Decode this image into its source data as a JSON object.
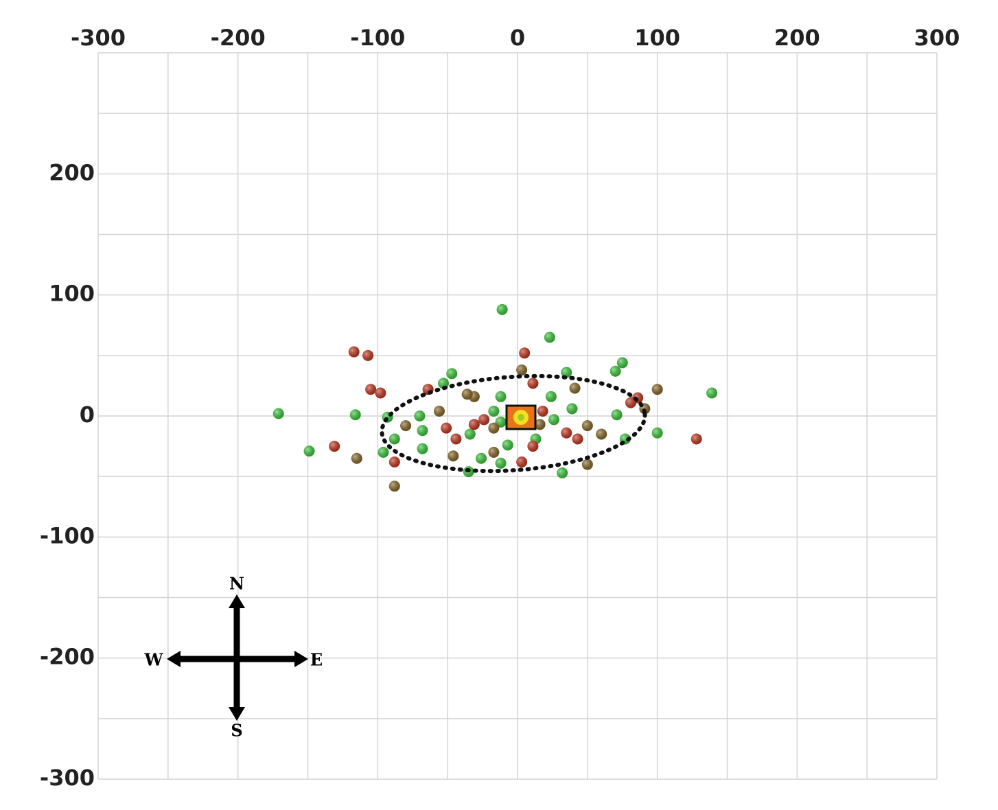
{
  "chart_data": {
    "type": "scatter",
    "xlim": [
      -300,
      300
    ],
    "ylim": [
      -300,
      300
    ],
    "xticks": [
      -300,
      -200,
      -100,
      0,
      100,
      200,
      300
    ],
    "yticks": [
      200,
      100,
      0,
      -100,
      -200,
      -300
    ],
    "xgrid": [
      -300,
      -250,
      -200,
      -150,
      -100,
      -50,
      0,
      50,
      100,
      150,
      200,
      250,
      300
    ],
    "ygrid": [
      -300,
      -250,
      -200,
      -150,
      -100,
      -50,
      0,
      50,
      100,
      150,
      200,
      250,
      300
    ],
    "compass": {
      "n": "N",
      "e": "E",
      "s": "S",
      "w": "W"
    },
    "series": [
      {
        "color": "#3ccc3c",
        "x": [
          -11,
          23,
          -171,
          -116,
          -149,
          139,
          100,
          75,
          70,
          32,
          -53,
          -47,
          -12,
          35,
          24,
          39,
          71,
          77,
          26,
          13,
          -7,
          -26,
          -12,
          -35,
          -34,
          -68,
          -68,
          -70,
          -93,
          -88,
          -96,
          -12,
          -17
        ],
        "y": [
          88,
          65,
          2,
          1,
          -29,
          19,
          -14,
          44,
          37,
          -47,
          27,
          35,
          16,
          36,
          16,
          6,
          1,
          -19,
          -3,
          -19,
          -24,
          -35,
          -39,
          -46,
          -15,
          -12,
          -27,
          0,
          -1,
          -19,
          -30,
          -5,
          4
        ]
      },
      {
        "color": "#c8361e",
        "x": [
          5,
          -117,
          -107,
          -105,
          -98,
          -131,
          128,
          -64,
          11,
          43,
          35,
          11,
          3,
          -44,
          -24,
          -31,
          -51,
          -88,
          18,
          86,
          81
        ],
        "y": [
          52,
          53,
          50,
          22,
          19,
          -25,
          -19,
          22,
          27,
          -19,
          -14,
          -25,
          -38,
          -19,
          -3,
          -7,
          -10,
          -38,
          4,
          15,
          11
        ]
      },
      {
        "color": "#8a6a28",
        "x": [
          -115,
          -88,
          100,
          91,
          50,
          -31,
          41,
          60,
          50,
          -17,
          -56,
          -80,
          16,
          -46,
          -17,
          3,
          -36
        ],
        "y": [
          -35,
          -58,
          22,
          6,
          -40,
          16,
          23,
          -15,
          -8,
          -30,
          4,
          -8,
          -7,
          -33,
          -10,
          38,
          18
        ]
      }
    ]
  }
}
